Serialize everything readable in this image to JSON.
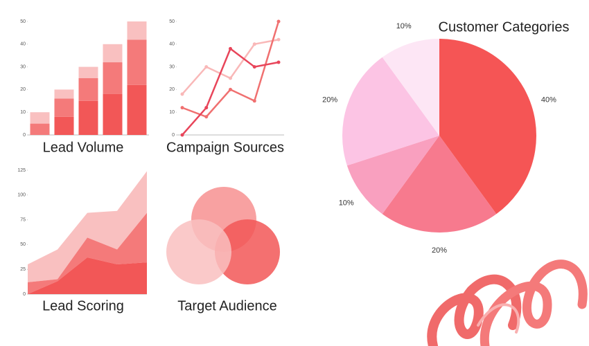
{
  "chart_data": [
    {
      "type": "stacked-bar",
      "title": "Lead Volume",
      "categories": [
        null,
        null,
        null,
        null,
        null
      ],
      "series": [
        {
          "color": "#f25757",
          "values": [
            0,
            8,
            15,
            18,
            22
          ]
        },
        {
          "color": "#f47a7a",
          "values": [
            5,
            8,
            10,
            14,
            20
          ]
        },
        {
          "color": "#f9c0c0",
          "values": [
            5,
            4,
            5,
            8,
            8
          ]
        }
      ],
      "ylim": [
        0,
        50
      ],
      "yticks": [
        0,
        10,
        20,
        30,
        40,
        50
      ]
    },
    {
      "type": "line",
      "title": "Campaign Sources",
      "categories": [
        null,
        null,
        null,
        null,
        null
      ],
      "series": [
        {
          "color": "#f9b8b8",
          "values": [
            18,
            30,
            25,
            40,
            42
          ]
        },
        {
          "color": "#f07070",
          "values": [
            12,
            8,
            20,
            15,
            50
          ]
        },
        {
          "color": "#e8455a",
          "values": [
            0,
            12,
            38,
            30,
            32
          ]
        }
      ],
      "ylim": [
        0,
        50
      ],
      "yticks": [
        0,
        10,
        20,
        30,
        40,
        50
      ]
    },
    {
      "type": "stacked-area",
      "title": "Lead Scoring",
      "categories": [
        null,
        null,
        null,
        null,
        null
      ],
      "series": [
        {
          "color": "#f25757",
          "values": [
            0,
            13,
            37,
            30,
            32
          ]
        },
        {
          "color": "#f47a7a",
          "values": [
            12,
            2,
            20,
            15,
            50
          ]
        },
        {
          "color": "#f9c0c0",
          "values": [
            18,
            30,
            25,
            39,
            42
          ]
        }
      ],
      "ylim": [
        0,
        125
      ],
      "yticks": [
        0,
        25,
        50,
        75,
        100,
        125
      ]
    },
    {
      "type": "venn",
      "title": "Target Audience",
      "colors": [
        "#f79090",
        "#f25757",
        "#f9c0c0"
      ]
    },
    {
      "type": "pie",
      "title": "Customer Categories",
      "values": [
        40,
        20,
        10,
        20,
        10
      ],
      "value_labels": [
        "40%",
        "20%",
        "10%",
        "20%",
        "10%"
      ],
      "colors": [
        "#f55555",
        "#f77a8e",
        "#f9a0bf",
        "#fcc4e4",
        "#fde6f5"
      ]
    }
  ]
}
